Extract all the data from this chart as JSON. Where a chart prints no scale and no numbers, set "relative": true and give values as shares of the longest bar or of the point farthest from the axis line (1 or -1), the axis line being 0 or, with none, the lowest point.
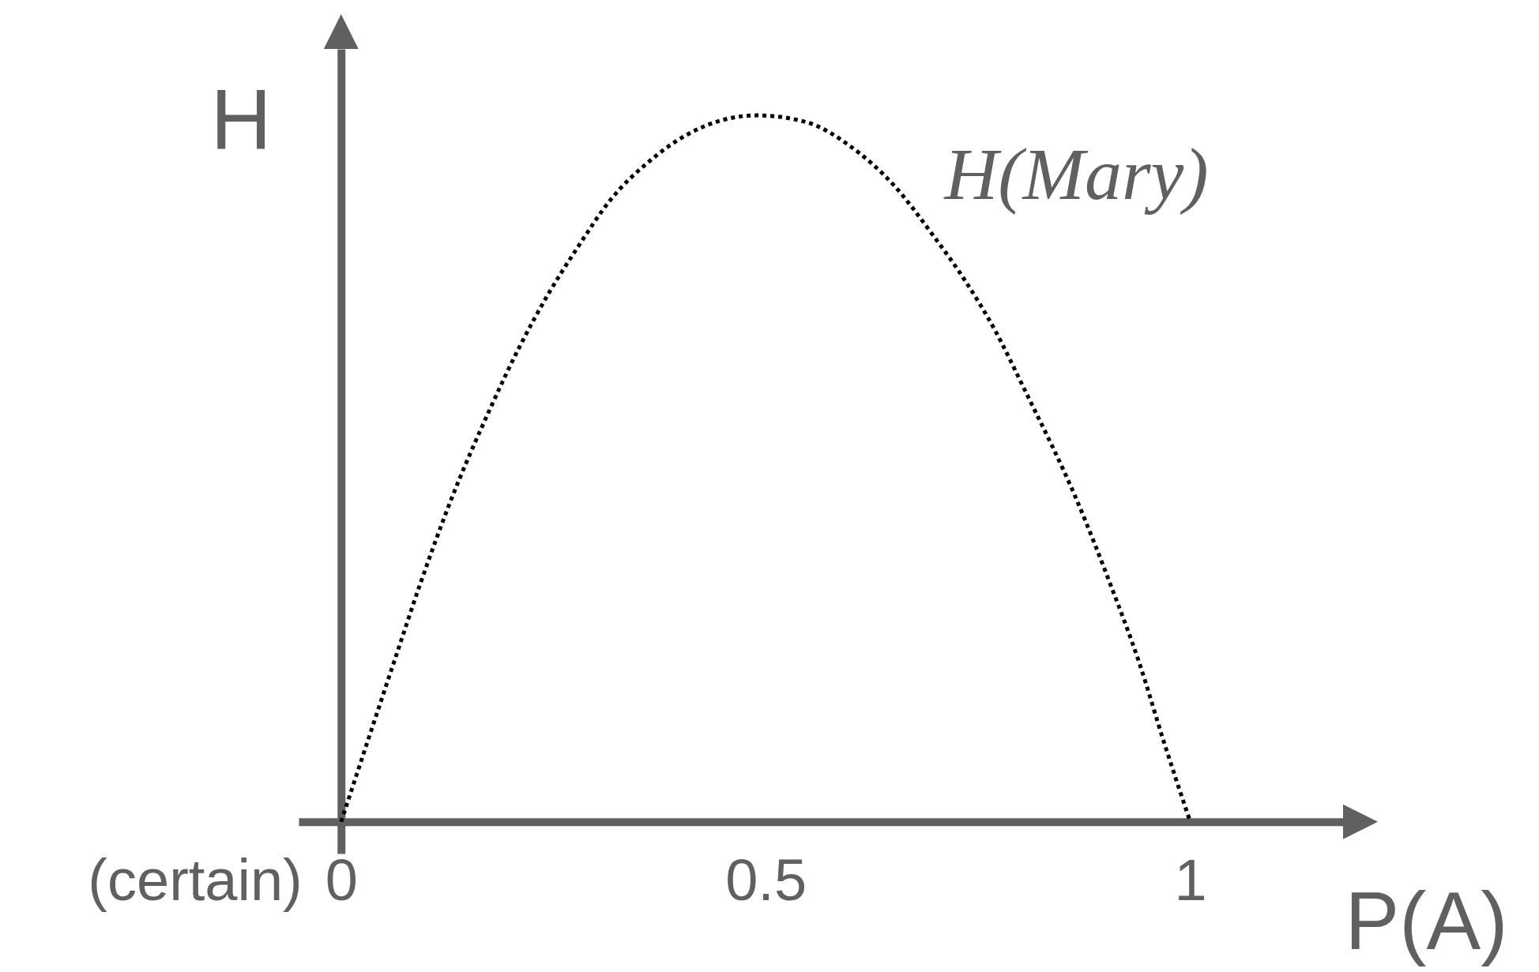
{
  "chart_data": {
    "type": "line",
    "xlabel": "P(A)",
    "ylabel": "H",
    "relative": true,
    "x": [
      0,
      0.031,
      0.062,
      0.093,
      0.127,
      0.176,
      0.21,
      0.244,
      0.278,
      0.317,
      0.363,
      0.408,
      0.448,
      0.49,
      0.549,
      0.6,
      0.651,
      0.696,
      0.736,
      0.77,
      0.804,
      0.869,
      0.906,
      0.94,
      0.969,
      1
    ],
    "series": [
      {
        "name": "H(Mary)",
        "color": "#000000",
        "values": [
          0,
          0.113,
          0.225,
          0.336,
          0.448,
          0.586,
          0.672,
          0.747,
          0.812,
          0.88,
          0.935,
          0.973,
          0.993,
          1,
          0.99,
          0.956,
          0.901,
          0.832,
          0.764,
          0.696,
          0.614,
          0.448,
          0.336,
          0.225,
          0.113,
          0
        ]
      }
    ],
    "xlim": [
      -0.05,
      1.18
    ],
    "xticks": [
      0,
      0.5,
      1
    ],
    "line_style": "dotted",
    "annotations": [
      "(certain)"
    ]
  }
}
